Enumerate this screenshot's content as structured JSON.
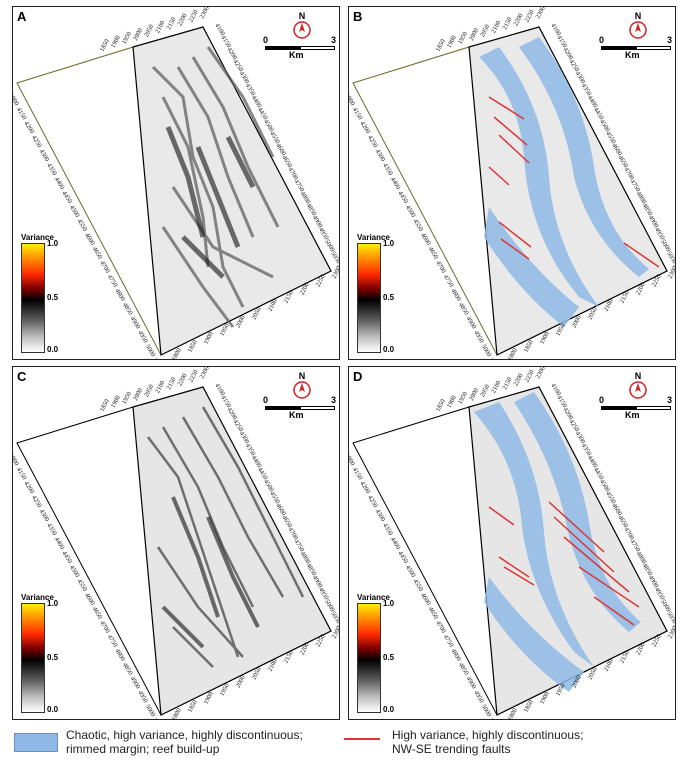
{
  "panels": [
    {
      "label": "A",
      "ticks_left": [
        "1800",
        "4150",
        "4200",
        "4250",
        "4300",
        "4350",
        "4400",
        "4450",
        "4500",
        "4550",
        "4600",
        "4650",
        "4700",
        "4750",
        "4800",
        "4850",
        "4900",
        "4950",
        "5000",
        "5100"
      ],
      "ticks_right": [
        "4100",
        "4150",
        "4200",
        "4250",
        "4300",
        "4350",
        "4400",
        "4450",
        "4500",
        "4550",
        "4600",
        "4650",
        "4700",
        "4750",
        "4800",
        "4850",
        "4900",
        "4950",
        "5000",
        "5050",
        "5100"
      ],
      "ticks_top": [
        "1850",
        "1900",
        "1950",
        "2000",
        "2050",
        "2100",
        "2150",
        "2200",
        "2250",
        "2300"
      ],
      "ticks_bottom": [
        "1800",
        "1850",
        "1900",
        "1950",
        "2000",
        "2050",
        "2100",
        "2150",
        "2200",
        "2250",
        "2300"
      ]
    },
    {
      "label": "B",
      "ticks_left": [
        "1800",
        "4150",
        "4200",
        "4250",
        "4300",
        "4350",
        "4400",
        "4450",
        "4500",
        "4550",
        "4600",
        "4650",
        "4700",
        "4750",
        "4800",
        "4850",
        "4900",
        "4950",
        "5000",
        "5100"
      ],
      "ticks_right": [
        "4100",
        "4150",
        "4200",
        "4250",
        "4300",
        "4350",
        "4400",
        "4450",
        "4500",
        "4550",
        "4600",
        "4650",
        "4700",
        "4750",
        "4800",
        "4850",
        "4900",
        "4950",
        "5000",
        "5050",
        "5100"
      ],
      "ticks_top": [
        "1850",
        "1900",
        "1950",
        "2000",
        "2050",
        "2100",
        "2150",
        "2200",
        "2250",
        "2300"
      ],
      "ticks_bottom": [
        "1800",
        "1850",
        "1900",
        "1950",
        "2000",
        "2050",
        "2100",
        "2150",
        "2200",
        "2250",
        "2300"
      ]
    },
    {
      "label": "C",
      "ticks_left": [
        "1800",
        "4150",
        "4200",
        "4250",
        "4300",
        "4350",
        "4400",
        "4450",
        "4500",
        "4550",
        "4600",
        "4650",
        "4700",
        "4750",
        "4800",
        "4850",
        "4900",
        "4950",
        "5000",
        "5100"
      ],
      "ticks_right": [
        "4100",
        "4150",
        "4200",
        "4250",
        "4300",
        "4350",
        "4400",
        "4450",
        "4500",
        "4550",
        "4600",
        "4650",
        "4700",
        "4750",
        "4800",
        "4850",
        "4900",
        "4950",
        "5000",
        "5050",
        "5100"
      ],
      "ticks_top": [
        "1850",
        "1900",
        "1950",
        "2000",
        "2050",
        "2100",
        "2150",
        "2200",
        "2250",
        "2300"
      ],
      "ticks_bottom": [
        "1800",
        "1850",
        "1900",
        "1950",
        "2000",
        "2050",
        "2100",
        "2150",
        "2200",
        "2250",
        "2300"
      ]
    },
    {
      "label": "D",
      "ticks_left": [
        "1800",
        "4150",
        "4200",
        "4250",
        "4300",
        "4350",
        "4400",
        "4450",
        "4500",
        "4550",
        "4600",
        "4650",
        "4700",
        "4750",
        "4800",
        "4850",
        "4900",
        "4950",
        "5000",
        "5100"
      ],
      "ticks_right": [
        "4100",
        "4150",
        "4200",
        "4250",
        "4300",
        "4350",
        "4400",
        "4450",
        "4500",
        "4550",
        "4600",
        "4650",
        "4700",
        "4750",
        "4800",
        "4850",
        "4900",
        "4950",
        "5000",
        "5050",
        "5100"
      ],
      "ticks_top": [
        "1850",
        "1900",
        "1950",
        "2000",
        "2050",
        "2100",
        "2150",
        "2200",
        "2250",
        "2300"
      ],
      "ticks_bottom": [
        "1800",
        "1850",
        "1900",
        "1950",
        "2000",
        "2050",
        "2100",
        "2150",
        "2200",
        "2250",
        "2300"
      ]
    }
  ],
  "north_label": "N",
  "scale": {
    "min": "0",
    "max": "3",
    "unit": "Km"
  },
  "colorbar": {
    "title": "Variance",
    "ticks": [
      "1.0",
      "0.5",
      "0.0"
    ]
  },
  "legend": {
    "blue_line1": "Chaotic, high variance, highly discontinuous;",
    "blue_line2": "rimmed margin; reef build-up",
    "red_line1": "High variance, highly discontinuous;",
    "red_line2": "NW-SE trending faults"
  },
  "colors": {
    "facies_blue": "#8fb8e6",
    "fault_red": "#d93636",
    "frame": "#222222"
  }
}
